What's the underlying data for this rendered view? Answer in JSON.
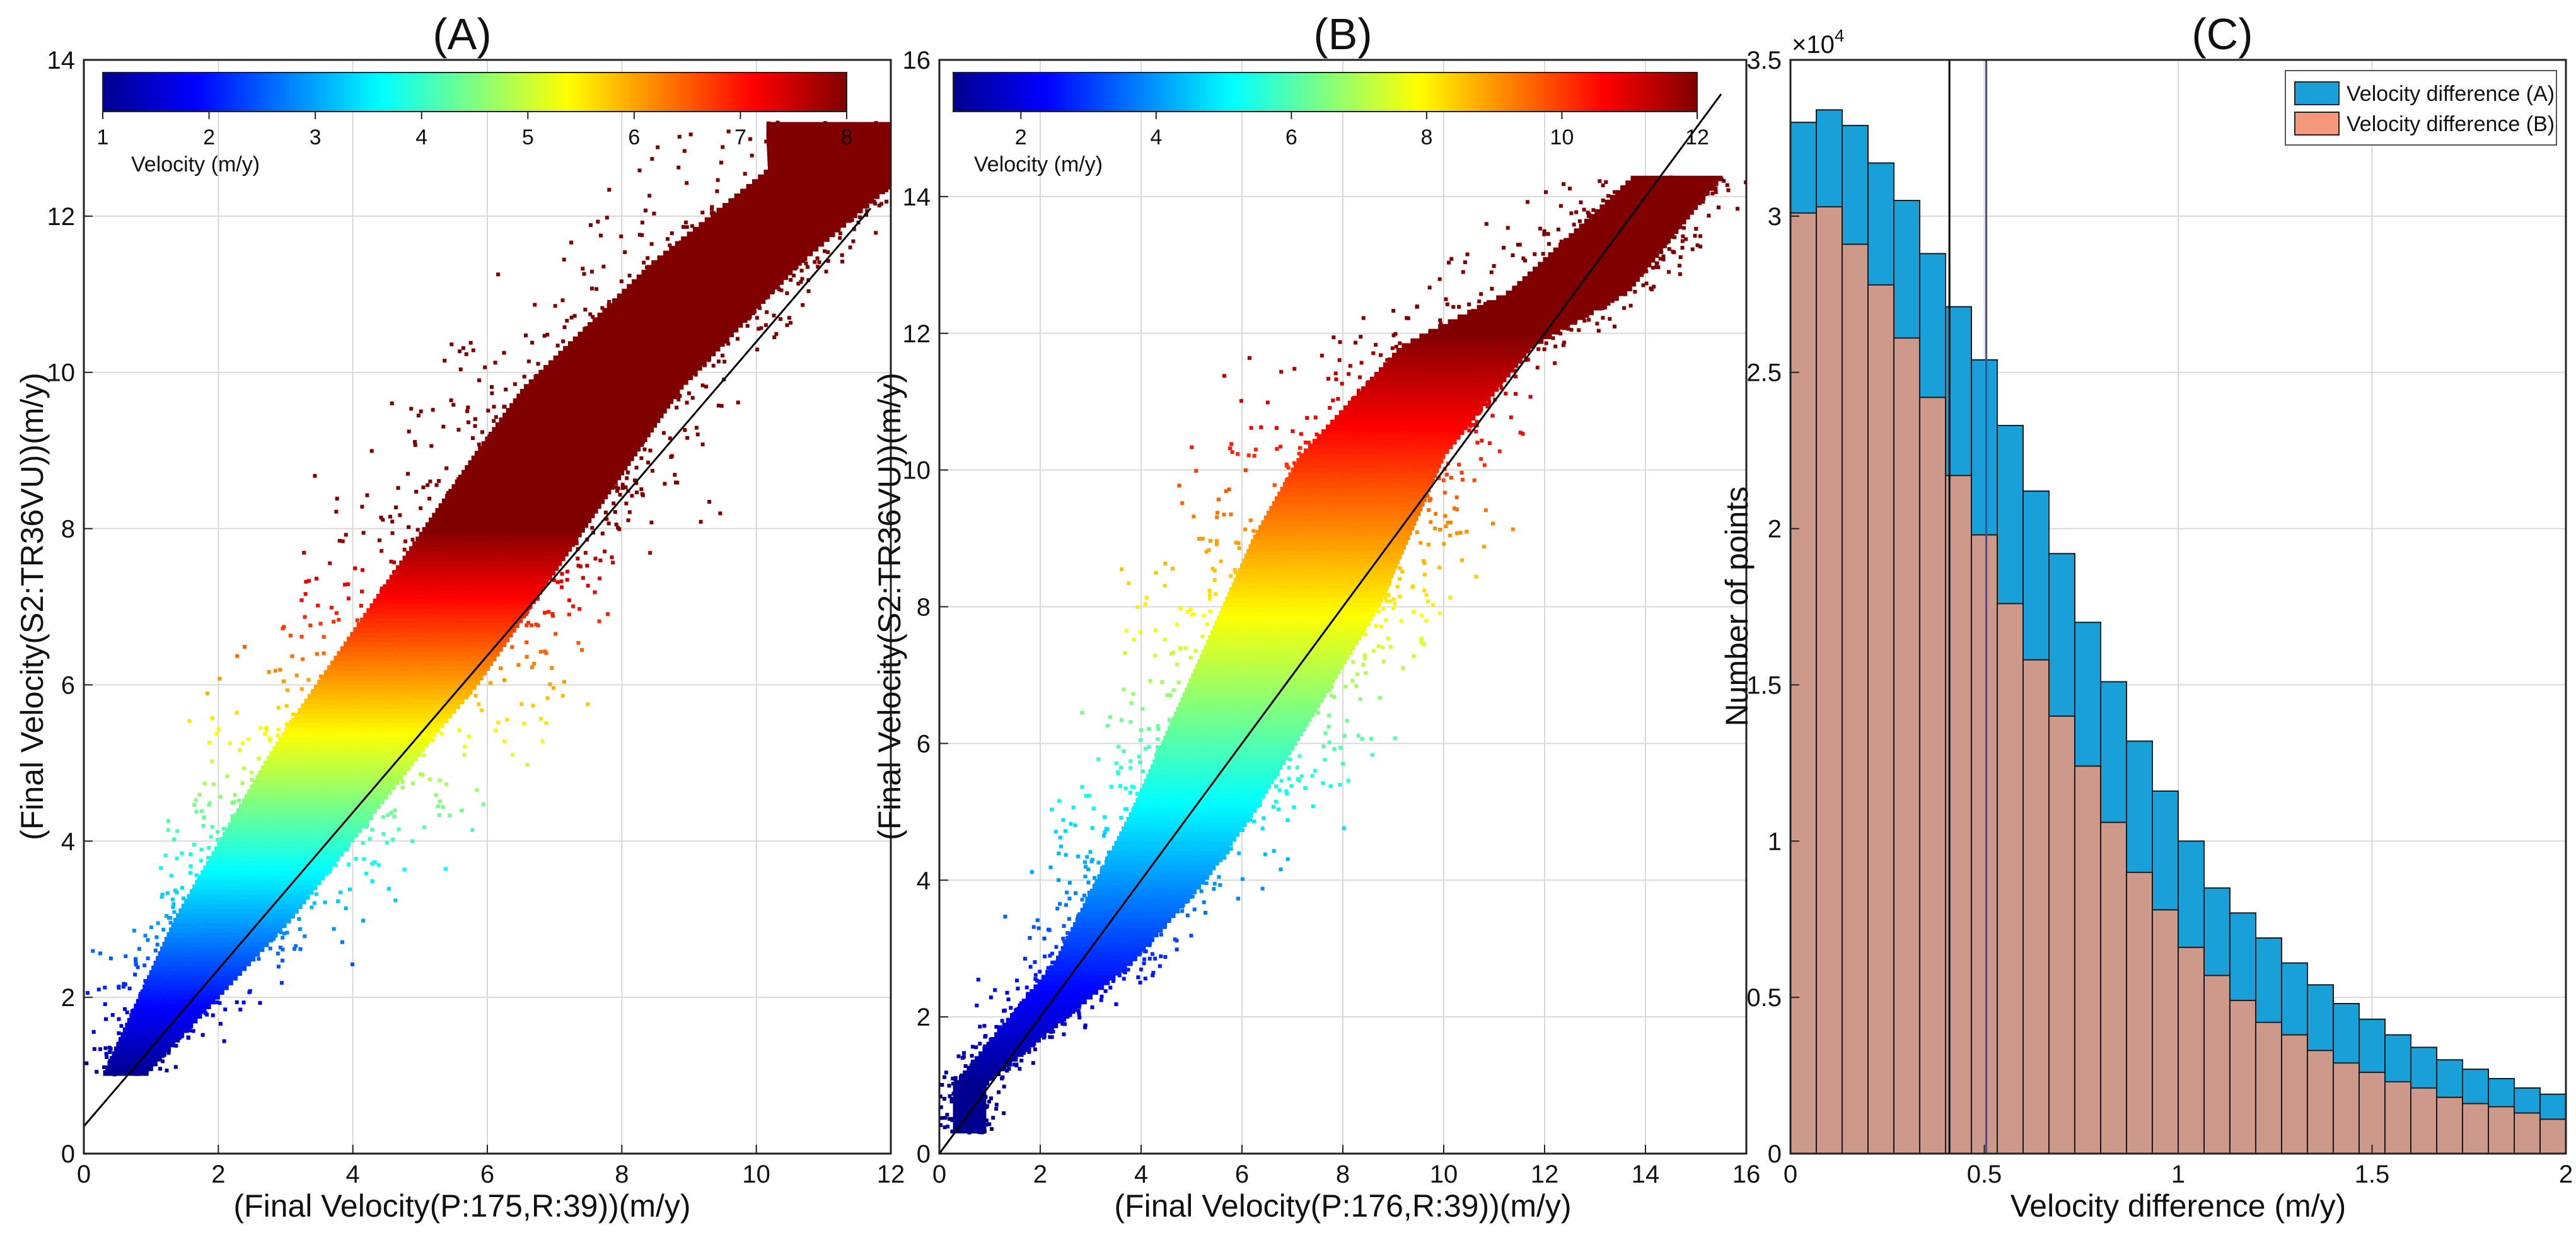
{
  "chart_data": [
    {
      "type": "scatter",
      "panel": "A",
      "title": "(A)",
      "xlabel": "(Final Velocity(P:175,R:39))(m/y)",
      "ylabel": "(Final Velocity(S2:TR36VU))(m/y)",
      "xlim": [
        0,
        12
      ],
      "ylim": [
        0,
        14
      ],
      "xticks": [
        0,
        2,
        4,
        6,
        8,
        10,
        12
      ],
      "yticks": [
        0,
        2,
        4,
        6,
        8,
        10,
        12,
        14
      ],
      "grid": true,
      "color_by": "y",
      "colorbar": {
        "label": "Velocity (m/y)",
        "min": 1,
        "max": 8,
        "ticks": [
          1,
          2,
          3,
          4,
          5,
          6,
          7,
          8
        ],
        "location": "top"
      },
      "reference_line": {
        "x": [
          0,
          11.7
        ],
        "y": [
          0.35,
          12.1
        ]
      },
      "cloud": {
        "trend": [
          [
            0.6,
            1.0
          ],
          [
            2,
            3.0
          ],
          [
            4,
            5.4
          ],
          [
            6,
            7.6
          ],
          [
            8,
            9.8
          ],
          [
            10,
            11.4
          ],
          [
            11.8,
            12.6
          ]
        ],
        "y_floor": 1.0,
        "y_ceiling": 13.2,
        "spread_left": [
          [
            1,
            0.6
          ],
          [
            5,
            1.8
          ],
          [
            9,
            2.6
          ],
          [
            13,
            3.0
          ]
        ],
        "spread_right": [
          [
            1,
            0.6
          ],
          [
            3,
            2.0
          ],
          [
            6,
            2.4
          ],
          [
            10,
            1.6
          ],
          [
            13,
            0.8
          ]
        ]
      }
    },
    {
      "type": "scatter",
      "panel": "B",
      "title": "(B)",
      "xlabel": "(Final Velocity(P:176,R:39))(m/y)",
      "ylabel": "(Final Velocity(S2:TR36VU))(m/y)",
      "xlim": [
        0,
        16
      ],
      "ylim": [
        0,
        16
      ],
      "xticks": [
        0,
        2,
        4,
        6,
        8,
        10,
        12,
        14,
        16
      ],
      "yticks": [
        0,
        2,
        4,
        6,
        8,
        10,
        12,
        14,
        16
      ],
      "grid": true,
      "color_by": "y",
      "colorbar": {
        "label": "Velocity (m/y)",
        "min": 1,
        "max": 12,
        "ticks": [
          2,
          4,
          6,
          8,
          10,
          12
        ],
        "location": "top"
      },
      "reference_line": {
        "x": [
          0,
          15.5
        ],
        "y": [
          0,
          15.5
        ]
      },
      "cloud": {
        "trend": [
          [
            0.6,
            1.0
          ],
          [
            3,
            2.8
          ],
          [
            5,
            5.0
          ],
          [
            7,
            7.6
          ],
          [
            9,
            10.2
          ],
          [
            11,
            11.8
          ],
          [
            13,
            12.6
          ],
          [
            15.2,
            14.4
          ]
        ],
        "y_floor": 0.3,
        "y_ceiling": 14.3,
        "spread_left": [
          [
            1,
            0.6
          ],
          [
            5,
            2.2
          ],
          [
            9,
            3.4
          ],
          [
            12,
            3.4
          ],
          [
            14.3,
            2.4
          ]
        ],
        "spread_right": [
          [
            1,
            0.6
          ],
          [
            4,
            2.2
          ],
          [
            8,
            2.6
          ],
          [
            11,
            1.6
          ],
          [
            14,
            0.9
          ]
        ]
      }
    },
    {
      "type": "bar",
      "panel": "C",
      "title": "(C)",
      "xlabel": "Velocity difference  (m/y)",
      "ylabel": "Number of points",
      "xlim": [
        0,
        2
      ],
      "ylim": [
        0,
        35000
      ],
      "xticks": [
        0,
        0.5,
        1,
        1.5,
        2
      ],
      "xtick_labels": [
        "0",
        "0.5",
        "1",
        "1.5",
        "2"
      ],
      "yticks": [
        0,
        5000,
        10000,
        15000,
        20000,
        25000,
        30000,
        35000
      ],
      "ytick_labels": [
        "0",
        "0.5",
        "1",
        "1.5",
        "2",
        "2.5",
        "3",
        "3.5"
      ],
      "y_exponent_label": "×10",
      "y_exponent": "4",
      "grid": true,
      "legend_position": "top-right",
      "bin_edges": [
        0,
        0.0667,
        0.1333,
        0.2,
        0.2667,
        0.3333,
        0.4,
        0.4667,
        0.5333,
        0.6,
        0.6667,
        0.7333,
        0.8,
        0.8667,
        0.9333,
        1.0,
        1.0667,
        1.1333,
        1.2,
        1.2667,
        1.3333,
        1.4,
        1.4667,
        1.5333,
        1.6,
        1.6667,
        1.7333,
        1.8,
        1.8667,
        1.9333,
        2.0
      ],
      "series": [
        {
          "name": "Velocity difference (A)",
          "color": "#1aa0d8",
          "values": [
            33000,
            33400,
            32900,
            31700,
            30500,
            28800,
            27100,
            25400,
            23300,
            21200,
            19200,
            17000,
            15100,
            13200,
            11600,
            10000,
            8500,
            7700,
            6900,
            6100,
            5400,
            4800,
            4300,
            3800,
            3400,
            3000,
            2700,
            2400,
            2100,
            1900
          ]
        },
        {
          "name": "Velocity difference (B)",
          "color": "#f4977a",
          "values": [
            30100,
            30300,
            29100,
            27800,
            26100,
            24200,
            21700,
            19800,
            17600,
            15800,
            14000,
            12400,
            10600,
            9000,
            7800,
            6600,
            5700,
            4900,
            4200,
            3800,
            3300,
            2900,
            2600,
            2300,
            2100,
            1800,
            1600,
            1500,
            1300,
            1100
          ]
        }
      ],
      "vertical_lines": [
        {
          "x": 0.41,
          "color": "#000000"
        },
        {
          "x": 0.505,
          "color": "#4a4a9a"
        }
      ]
    }
  ]
}
